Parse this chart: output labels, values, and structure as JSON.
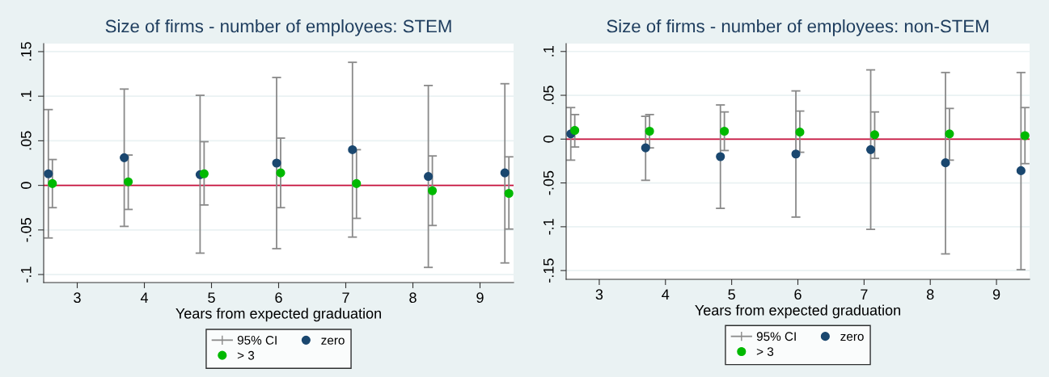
{
  "chart_data": [
    {
      "type": "scatter",
      "title": "Size of firms - number of employees: STEM",
      "xlabel": "Years from expected graduation",
      "annotations": [
        "95% CI"
      ],
      "series": [
        {
          "name": "zero",
          "color": "#1a476f",
          "x": [
            2.57,
            3.7,
            4.83,
            5.97,
            7.1,
            8.23,
            9.37
          ],
          "values": [
            0.013,
            0.031,
            0.012,
            0.025,
            0.04,
            0.01,
            0.014
          ],
          "errors": [
            [
              -0.059,
              0.085
            ],
            [
              -0.046,
              0.108
            ],
            [
              -0.076,
              0.101
            ],
            [
              -0.071,
              0.121
            ],
            [
              -0.058,
              0.138
            ],
            [
              -0.092,
              0.112
            ],
            [
              -0.087,
              0.114
            ]
          ]
        },
        {
          "name": "> 3",
          "color": "#00b900",
          "x": [
            2.63,
            3.76,
            4.89,
            6.03,
            7.16,
            8.29,
            9.43
          ],
          "values": [
            0.002,
            0.004,
            0.013,
            0.014,
            0.002,
            -0.006,
            -0.009
          ],
          "errors": [
            [
              -0.025,
              0.029
            ],
            [
              -0.027,
              0.034
            ],
            [
              -0.022,
              0.049
            ],
            [
              -0.025,
              0.053
            ],
            [
              -0.037,
              0.04
            ],
            [
              -0.045,
              0.033
            ],
            [
              -0.049,
              0.032
            ]
          ]
        }
      ],
      "xlim": [
        2.5,
        9.5
      ],
      "xticks": [
        3,
        4,
        5,
        6,
        7,
        8,
        9
      ],
      "ylim": [
        -0.109,
        0.159
      ],
      "yticks": [
        {
          "value": -0.1,
          "label": "-.1"
        },
        {
          "value": -0.05,
          "label": "-.05"
        },
        0,
        {
          "value": 0.05,
          "label": ".05"
        },
        {
          "value": 0.1,
          "label": ".1"
        },
        {
          "value": 0.15,
          "label": ".15"
        }
      ],
      "ref_lines": [
        {
          "axis": "y",
          "value": 0,
          "color": "#c8103c"
        }
      ],
      "grid": "y",
      "legend": "bottom",
      "marker": "circle"
    },
    {
      "type": "scatter",
      "title": "Size of firms - number of employees: non-STEM",
      "xlabel": "Years from expected graduation",
      "annotations": [
        "95% CI"
      ],
      "series": [
        {
          "name": "zero",
          "color": "#1a476f",
          "x": [
            2.57,
            3.7,
            4.83,
            5.97,
            7.1,
            8.23,
            9.37
          ],
          "values": [
            0.006,
            -0.01,
            -0.02,
            -0.017,
            -0.012,
            -0.027,
            -0.036
          ],
          "errors": [
            [
              -0.024,
              0.036
            ],
            [
              -0.047,
              0.026
            ],
            [
              -0.079,
              0.039
            ],
            [
              -0.089,
              0.055
            ],
            [
              -0.103,
              0.079
            ],
            [
              -0.131,
              0.076
            ],
            [
              -0.149,
              0.076
            ]
          ]
        },
        {
          "name": "> 3",
          "color": "#00b900",
          "x": [
            2.63,
            3.76,
            4.89,
            6.03,
            7.16,
            8.29,
            9.43
          ],
          "values": [
            0.01,
            0.009,
            0.009,
            0.008,
            0.005,
            0.006,
            0.004
          ],
          "errors": [
            [
              -0.009,
              0.028
            ],
            [
              -0.01,
              0.028
            ],
            [
              -0.013,
              0.031
            ],
            [
              -0.015,
              0.032
            ],
            [
              -0.022,
              0.031
            ],
            [
              -0.024,
              0.035
            ],
            [
              -0.028,
              0.036
            ]
          ]
        }
      ],
      "xlim": [
        2.5,
        9.5
      ],
      "xticks": [
        3,
        4,
        5,
        6,
        7,
        8,
        9
      ],
      "ylim": [
        -0.16,
        0.109
      ],
      "yticks": [
        {
          "value": -0.15,
          "label": "-.15"
        },
        {
          "value": -0.1,
          "label": "-.1"
        },
        {
          "value": -0.05,
          "label": "-.05"
        },
        0,
        {
          "value": 0.05,
          "label": ".05"
        },
        {
          "value": 0.1,
          "label": ".1"
        }
      ],
      "ref_lines": [
        {
          "axis": "y",
          "value": 0,
          "color": "#c8103c"
        }
      ],
      "grid": "y",
      "legend": "bottom",
      "marker": "circle"
    }
  ]
}
